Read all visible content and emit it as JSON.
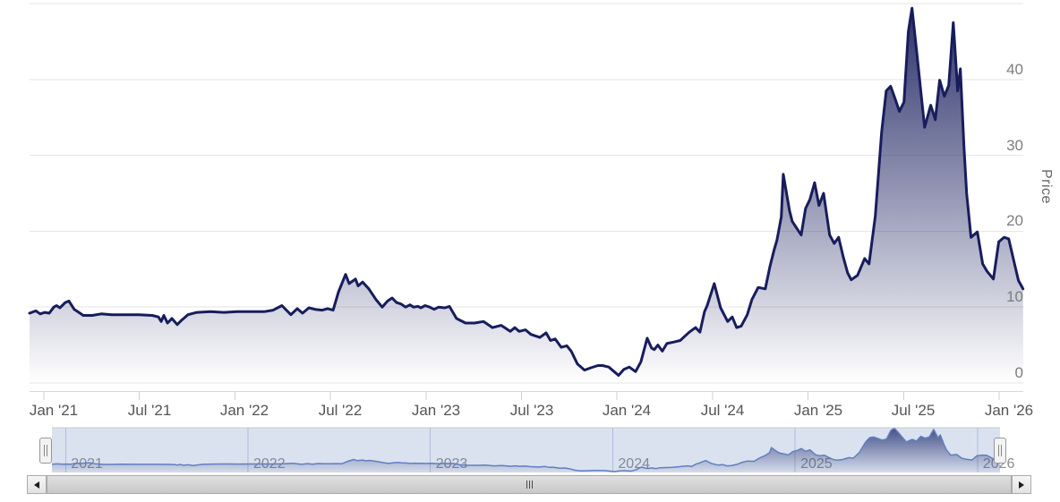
{
  "chart_data": {
    "type": "area",
    "title": "",
    "xlabel": "",
    "ylabel": "Price",
    "ylim": [
      0,
      50
    ],
    "grid": true,
    "legend_position": "none",
    "time_unit": "decimal_year",
    "x_range": [
      2020.925,
      2026.125
    ],
    "y_ticks": [
      0,
      10,
      20,
      30,
      40
    ],
    "y_gridlines": [
      0,
      10,
      20,
      30,
      40,
      50
    ],
    "x_tick_times": [
      2021.0,
      2021.5,
      2022.0,
      2022.5,
      2023.0,
      2023.5,
      2024.0,
      2024.5,
      2025.0,
      2025.5,
      2026.0
    ],
    "x_tick_labels": [
      "Jan '21",
      "Jul '21",
      "Jan '22",
      "Jul '22",
      "Jan '23",
      "Jul '23",
      "Jan '24",
      "Jul '24",
      "Jan '25",
      "Jul '25",
      "Jan '26"
    ],
    "navigator_year_times": [
      2021,
      2022,
      2023,
      2024,
      2025,
      2026
    ],
    "navigator_year_labels": [
      "2021",
      "2022",
      "2023",
      "2024",
      "2025",
      "2026"
    ],
    "series": [
      {
        "name": "Price",
        "points": [
          [
            2020.925,
            9.2
          ],
          [
            2020.958,
            9.5
          ],
          [
            2020.981,
            9.1
          ],
          [
            2021.005,
            9.3
          ],
          [
            2021.028,
            9.2
          ],
          [
            2021.052,
            10.0
          ],
          [
            2021.066,
            10.2
          ],
          [
            2021.084,
            9.9
          ],
          [
            2021.112,
            10.6
          ],
          [
            2021.131,
            10.8
          ],
          [
            2021.159,
            9.7
          ],
          [
            2021.183,
            9.3
          ],
          [
            2021.206,
            8.9
          ],
          [
            2021.253,
            8.9
          ],
          [
            2021.3,
            9.1
          ],
          [
            2021.356,
            9.0
          ],
          [
            2021.426,
            9.0
          ],
          [
            2021.497,
            9.0
          ],
          [
            2021.567,
            8.9
          ],
          [
            2021.6,
            8.7
          ],
          [
            2021.614,
            8.1
          ],
          [
            2021.628,
            8.9
          ],
          [
            2021.647,
            7.9
          ],
          [
            2021.67,
            8.5
          ],
          [
            2021.698,
            7.7
          ],
          [
            2021.722,
            8.3
          ],
          [
            2021.754,
            9.0
          ],
          [
            2021.801,
            9.3
          ],
          [
            2021.872,
            9.4
          ],
          [
            2021.942,
            9.3
          ],
          [
            2022.012,
            9.4
          ],
          [
            2022.082,
            9.4
          ],
          [
            2022.153,
            9.4
          ],
          [
            2022.2,
            9.6
          ],
          [
            2022.246,
            10.2
          ],
          [
            2022.293,
            9.0
          ],
          [
            2022.326,
            9.8
          ],
          [
            2022.354,
            9.2
          ],
          [
            2022.387,
            9.9
          ],
          [
            2022.42,
            9.7
          ],
          [
            2022.457,
            9.6
          ],
          [
            2022.485,
            9.8
          ],
          [
            2022.514,
            9.6
          ],
          [
            2022.542,
            12.0
          ],
          [
            2022.579,
            14.3
          ],
          [
            2022.598,
            13.1
          ],
          [
            2022.631,
            13.7
          ],
          [
            2022.645,
            12.8
          ],
          [
            2022.668,
            13.3
          ],
          [
            2022.701,
            12.4
          ],
          [
            2022.738,
            11.0
          ],
          [
            2022.771,
            10.0
          ],
          [
            2022.799,
            10.8
          ],
          [
            2022.823,
            11.2
          ],
          [
            2022.846,
            10.6
          ],
          [
            2022.87,
            10.4
          ],
          [
            2022.893,
            10.0
          ],
          [
            2022.916,
            10.3
          ],
          [
            2022.935,
            10.0
          ],
          [
            2022.959,
            10.1
          ],
          [
            2022.973,
            9.9
          ],
          [
            2022.996,
            10.2
          ],
          [
            2023.019,
            10.0
          ],
          [
            2023.043,
            9.7
          ],
          [
            2023.066,
            10.0
          ],
          [
            2023.099,
            9.9
          ],
          [
            2023.123,
            10.1
          ],
          [
            2023.16,
            8.5
          ],
          [
            2023.207,
            7.9
          ],
          [
            2023.254,
            7.9
          ],
          [
            2023.301,
            8.1
          ],
          [
            2023.348,
            7.3
          ],
          [
            2023.394,
            7.6
          ],
          [
            2023.441,
            6.8
          ],
          [
            2023.465,
            7.3
          ],
          [
            2023.488,
            6.8
          ],
          [
            2023.521,
            7.0
          ],
          [
            2023.549,
            6.4
          ],
          [
            2023.596,
            6.0
          ],
          [
            2023.629,
            6.6
          ],
          [
            2023.652,
            5.6
          ],
          [
            2023.676,
            5.8
          ],
          [
            2023.708,
            4.7
          ],
          [
            2023.737,
            4.9
          ],
          [
            2023.76,
            4.2
          ],
          [
            2023.793,
            2.5
          ],
          [
            2023.83,
            1.7
          ],
          [
            2023.863,
            2.0
          ],
          [
            2023.9,
            2.3
          ],
          [
            2023.924,
            2.3
          ],
          [
            2023.957,
            2.1
          ],
          [
            2023.985,
            1.5
          ],
          [
            2024.008,
            1.0
          ],
          [
            2024.036,
            1.8
          ],
          [
            2024.064,
            2.1
          ],
          [
            2024.097,
            1.5
          ],
          [
            2024.125,
            2.8
          ],
          [
            2024.158,
            5.9
          ],
          [
            2024.181,
            4.6
          ],
          [
            2024.195,
            4.4
          ],
          [
            2024.214,
            5.0
          ],
          [
            2024.237,
            4.2
          ],
          [
            2024.261,
            5.2
          ],
          [
            2024.298,
            5.4
          ],
          [
            2024.331,
            5.6
          ],
          [
            2024.378,
            6.7
          ],
          [
            2024.411,
            7.3
          ],
          [
            2024.434,
            6.7
          ],
          [
            2024.458,
            9.4
          ],
          [
            2024.472,
            10.2
          ],
          [
            2024.509,
            13.1
          ],
          [
            2024.542,
            9.9
          ],
          [
            2024.579,
            8.1
          ],
          [
            2024.603,
            8.7
          ],
          [
            2024.626,
            7.3
          ],
          [
            2024.65,
            7.5
          ],
          [
            2024.682,
            9.0
          ],
          [
            2024.706,
            11.0
          ],
          [
            2024.739,
            12.6
          ],
          [
            2024.776,
            12.4
          ],
          [
            2024.8,
            15.3
          ],
          [
            2024.823,
            17.6
          ],
          [
            2024.837,
            18.8
          ],
          [
            2024.86,
            21.9
          ],
          [
            2024.87,
            27.5
          ],
          [
            2024.903,
            22.7
          ],
          [
            2024.917,
            21.3
          ],
          [
            2024.964,
            19.5
          ],
          [
            2024.987,
            23.0
          ],
          [
            2025.01,
            24.2
          ],
          [
            2025.034,
            26.4
          ],
          [
            2025.057,
            23.4
          ],
          [
            2025.081,
            25.0
          ],
          [
            2025.113,
            19.5
          ],
          [
            2025.137,
            18.4
          ],
          [
            2025.16,
            19.2
          ],
          [
            2025.184,
            16.6
          ],
          [
            2025.207,
            14.5
          ],
          [
            2025.226,
            13.6
          ],
          [
            2025.259,
            14.2
          ],
          [
            2025.296,
            16.4
          ],
          [
            2025.319,
            15.7
          ],
          [
            2025.352,
            22.0
          ],
          [
            2025.385,
            33.1
          ],
          [
            2025.409,
            38.5
          ],
          [
            2025.432,
            39.1
          ],
          [
            2025.455,
            37.5
          ],
          [
            2025.478,
            35.8
          ],
          [
            2025.502,
            37.0
          ],
          [
            2025.525,
            46.3
          ],
          [
            2025.544,
            49.4
          ],
          [
            2025.572,
            42.8
          ],
          [
            2025.596,
            37.0
          ],
          [
            2025.61,
            33.7
          ],
          [
            2025.642,
            36.6
          ],
          [
            2025.666,
            34.7
          ],
          [
            2025.689,
            39.9
          ],
          [
            2025.713,
            37.8
          ],
          [
            2025.736,
            39.2
          ],
          [
            2025.76,
            47.5
          ],
          [
            2025.783,
            38.5
          ],
          [
            2025.797,
            41.4
          ],
          [
            2025.816,
            31.2
          ],
          [
            2025.83,
            25.0
          ],
          [
            2025.853,
            19.2
          ],
          [
            2025.886,
            19.9
          ],
          [
            2025.914,
            15.7
          ],
          [
            2025.937,
            14.7
          ],
          [
            2025.97,
            13.7
          ],
          [
            2025.998,
            18.6
          ],
          [
            2026.026,
            19.2
          ],
          [
            2026.05,
            19.0
          ],
          [
            2026.078,
            16.0
          ],
          [
            2026.101,
            13.5
          ],
          [
            2026.125,
            12.4
          ]
        ]
      }
    ]
  },
  "colors": {
    "line": "#171d5c",
    "fill_top": "rgba(23,29,92,0.93)",
    "fill_bottom": "rgba(23,29,92,0)",
    "nav_line": "#5f7ec1",
    "nav_fill_top": "rgba(23,29,92,0.85)",
    "nav_fill_bottom": "rgba(23,29,92,0.03)",
    "nav_mask": "rgba(102,133,194,0.24)",
    "nav_grid": "rgba(150,165,200,0.55)",
    "nav_outline": "#c9c9c9",
    "gridline": "#e6e6e6",
    "axis_line": "#d6d6de",
    "tick": "#ccd0de",
    "x_label": "#555555",
    "y_label": "#7d7d7d",
    "nav_label": "#8c8c8c",
    "axis_title": "#666666"
  },
  "ui": {
    "icons": {
      "scrollbar_left": "left-arrow-icon",
      "scrollbar_right": "right-arrow-icon",
      "scrollbar_grip": "grip-bars-icon",
      "navigator_handle": "drag-handle-icon"
    }
  }
}
